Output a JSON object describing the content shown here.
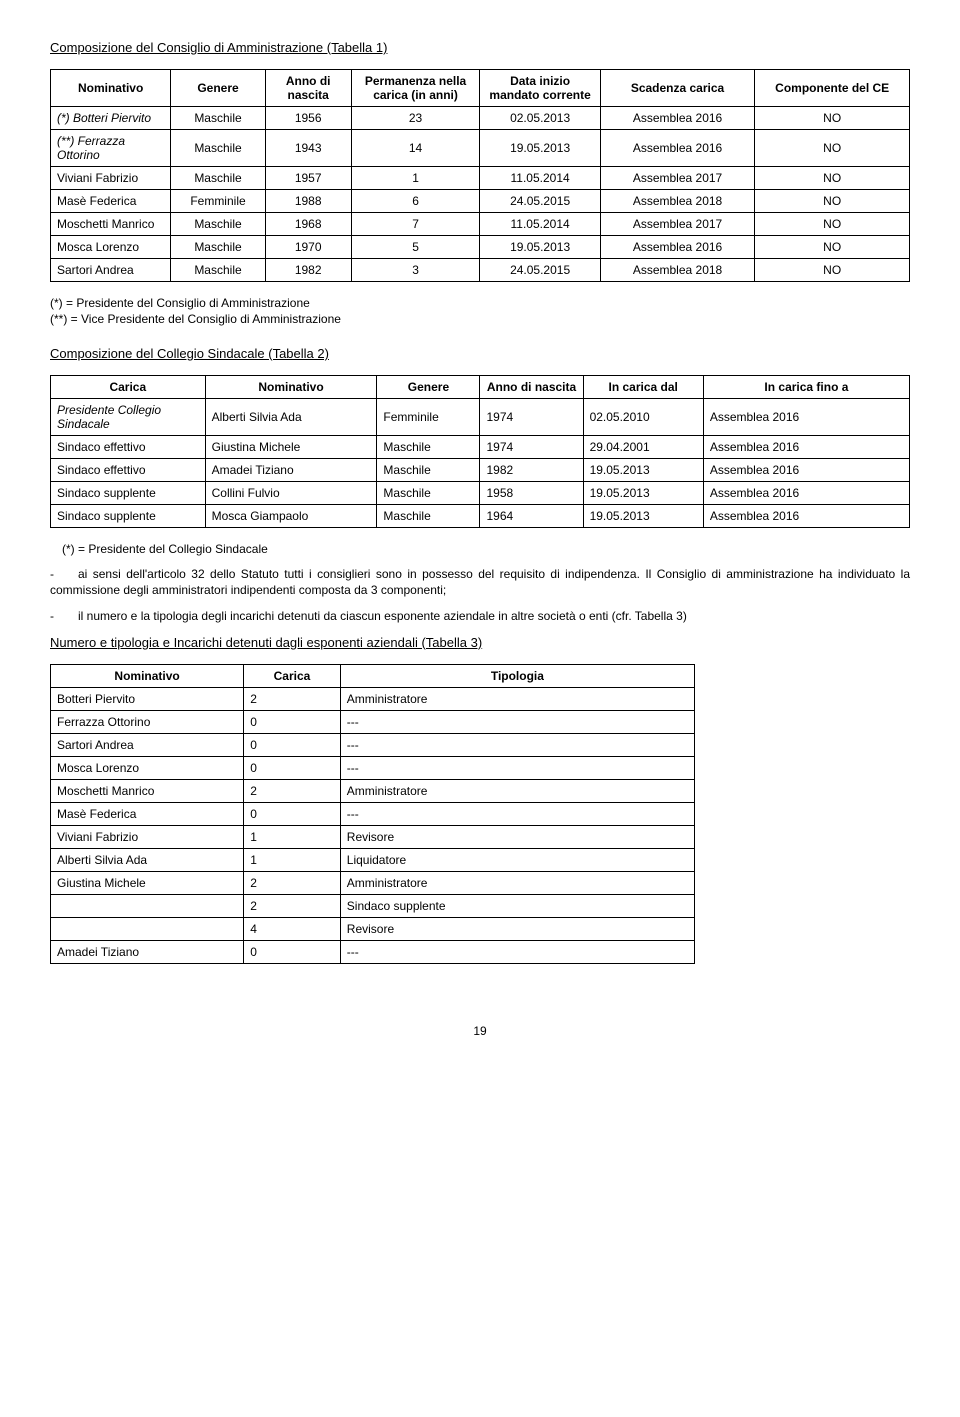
{
  "t1": {
    "title": "Composizione del Consiglio di Amministrazione (Tabella 1)",
    "headers": [
      "Nominativo",
      "Genere",
      "Anno di nascita",
      "Permanenza nella carica (in anni)",
      "Data inizio mandato corrente",
      "Scadenza carica",
      "Componente del CE"
    ],
    "rows": [
      {
        "c0": "(*) Botteri Piervito",
        "c0_italic": true,
        "c1": "Maschile",
        "c2": "1956",
        "c3": "23",
        "c4": "02.05.2013",
        "c5": "Assemblea 2016",
        "c6": "NO"
      },
      {
        "c0": "(**) Ferrazza Ottorino",
        "c0_italic": true,
        "c1": "Maschile",
        "c2": "1943",
        "c3": "14",
        "c4": "19.05.2013",
        "c5": "Assemblea 2016",
        "c6": "NO"
      },
      {
        "c0": "Viviani Fabrizio",
        "c1": "Maschile",
        "c2": "1957",
        "c3": "1",
        "c4": "11.05.2014",
        "c5": "Assemblea 2017",
        "c6": "NO"
      },
      {
        "c0": "Masè Federica",
        "c1": "Femminile",
        "c2": "1988",
        "c3": "6",
        "c4": "24.05.2015",
        "c5": "Assemblea 2018",
        "c6": "NO"
      },
      {
        "c0": "Moschetti Manrico",
        "c1": "Maschile",
        "c2": "1968",
        "c3": "7",
        "c4": "11.05.2014",
        "c5": "Assemblea 2017",
        "c6": "NO"
      },
      {
        "c0": "Mosca Lorenzo",
        "c1": "Maschile",
        "c2": "1970",
        "c3": "5",
        "c4": "19.05.2013",
        "c5": "Assemblea 2016",
        "c6": "NO"
      },
      {
        "c0": "Sartori Andrea",
        "c1": "Maschile",
        "c2": "1982",
        "c3": "3",
        "c4": "24.05.2015",
        "c5": "Assemblea 2018",
        "c6": "NO"
      }
    ],
    "col_widths": [
      "14%",
      "11%",
      "10%",
      "15%",
      "14%",
      "18%",
      "18%"
    ]
  },
  "t1_foot1": "(*) = Presidente del Consiglio di Amministrazione",
  "t1_foot2": "(**) = Vice Presidente del Consiglio di Amministrazione",
  "t2": {
    "title": "Composizione del Collegio Sindacale (Tabella 2)",
    "headers": [
      "Carica",
      "Nominativo",
      "Genere",
      "Anno di nascita",
      "In carica dal",
      "In carica fino a"
    ],
    "rows": [
      {
        "c0": "Presidente Collegio Sindacale",
        "c0_italic": true,
        "c1": "Alberti Silvia Ada",
        "c2": "Femminile",
        "c3": "1974",
        "c4": "02.05.2010",
        "c5": "Assemblea 2016"
      },
      {
        "c0": "Sindaco effettivo",
        "c1": "Giustina Michele",
        "c2": "Maschile",
        "c3": "1974",
        "c4": "29.04.2001",
        "c5": "Assemblea 2016"
      },
      {
        "c0": "Sindaco effettivo",
        "c1": "Amadei Tiziano",
        "c2": "Maschile",
        "c3": "1982",
        "c4": "19.05.2013",
        "c5": "Assemblea 2016"
      },
      {
        "c0": "Sindaco supplente",
        "c1": "Collini Fulvio",
        "c2": "Maschile",
        "c3": "1958",
        "c4": "19.05.2013",
        "c5": "Assemblea 2016"
      },
      {
        "c0": "Sindaco supplente",
        "c1": "Mosca Giampaolo",
        "c2": "Maschile",
        "c3": "1964",
        "c4": "19.05.2013",
        "c5": "Assemblea 2016"
      }
    ],
    "col_widths": [
      "18%",
      "20%",
      "12%",
      "12%",
      "14%",
      "24%"
    ]
  },
  "t2_foot": "(*) = Presidente del Collegio Sindacale",
  "para1": "-  ai sensi dell'articolo 32 dello Statuto tutti i consiglieri sono in possesso del requisito di indipendenza. Il Consiglio di amministrazione ha individuato la commissione degli amministratori indipendenti composta da 3 componenti;",
  "para2": "-  il numero e la tipologia degli incarichi detenuti da ciascun esponente aziendale in altre società o enti (cfr. Tabella 3)",
  "t3": {
    "title": "Numero e tipologia e Incarichi detenuti dagli esponenti aziendali (Tabella 3)",
    "headers": [
      "Nominativo",
      "Carica",
      "Tipologia"
    ],
    "rows": [
      {
        "c0": "Botteri Piervito",
        "c1": "2",
        "c2": "Amministratore"
      },
      {
        "c0": "Ferrazza Ottorino",
        "c1": "0",
        "c2": "---"
      },
      {
        "c0": "Sartori Andrea",
        "c1": "0",
        "c2": "---"
      },
      {
        "c0": "Mosca Lorenzo",
        "c1": "0",
        "c2": "---"
      },
      {
        "c0": "Moschetti Manrico",
        "c1": "2",
        "c2": "Amministratore"
      },
      {
        "c0": "Masè Federica",
        "c1": "0",
        "c2": "---"
      },
      {
        "c0": "Viviani Fabrizio",
        "c1": "1",
        "c2": "Revisore"
      },
      {
        "c0": "Alberti Silvia Ada",
        "c1": "1",
        "c2": "Liquidatore"
      },
      {
        "c0": "Giustina Michele",
        "c1": "2",
        "c2": "Amministratore"
      },
      {
        "c0": "",
        "c1": "2",
        "c2": "Sindaco supplente"
      },
      {
        "c0": "",
        "c1": "4",
        "c2": "Revisore"
      },
      {
        "c0": "Amadei Tiziano",
        "c1": "0",
        "c2": "---"
      }
    ],
    "col_widths": [
      "30%",
      "15%",
      "55%"
    ],
    "width": "75%"
  },
  "page_number": "19"
}
